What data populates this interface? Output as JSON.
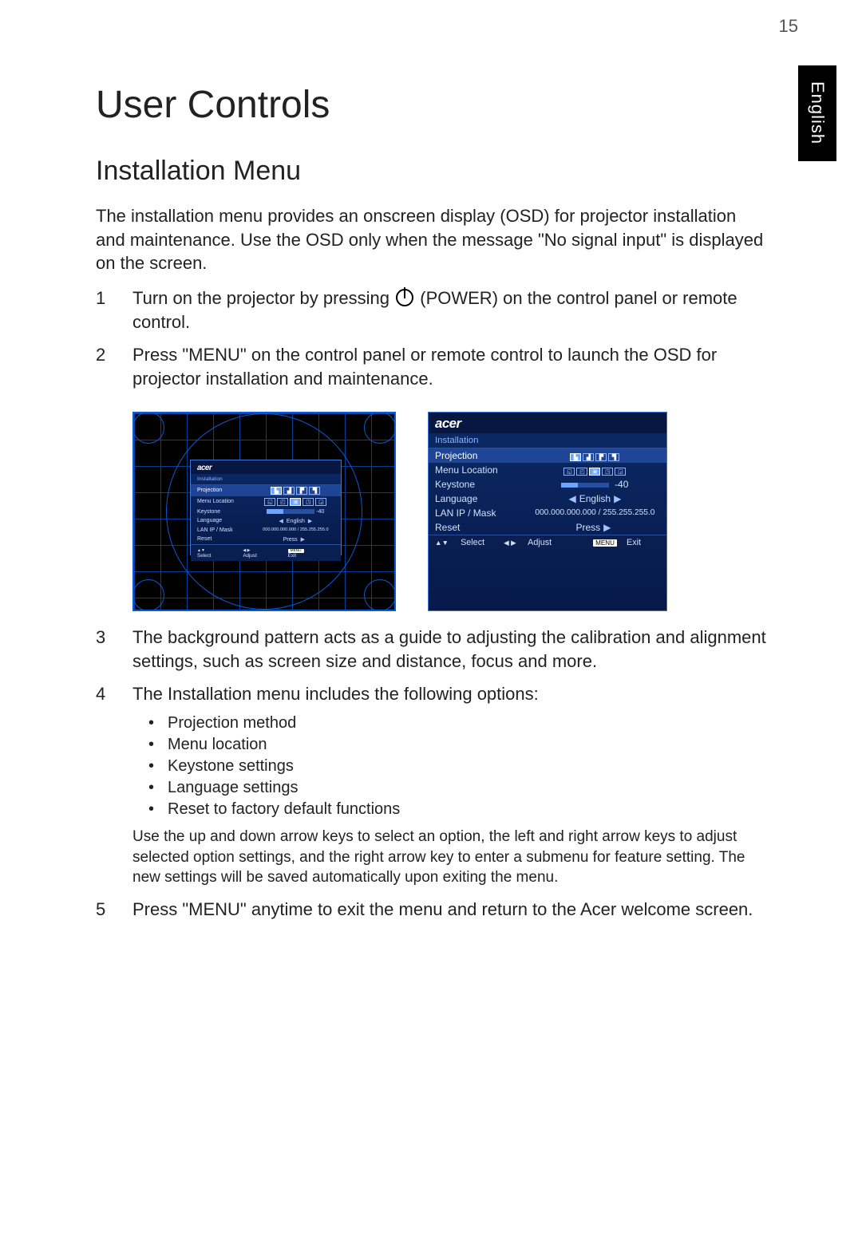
{
  "page_number": "15",
  "side_tab": "English",
  "h1": "User Controls",
  "h2": "Installation Menu",
  "intro": "The installation menu provides an onscreen display (OSD) for projector installation and maintenance. Use the OSD only when the message \"No signal input\" is displayed on the screen.",
  "step1_a": "Turn on the projector by pressing ",
  "step1_b": " (POWER) on the control panel or remote control.",
  "step2": "Press \"MENU\" on the control panel or remote control to launch the OSD for projector installation and maintenance.",
  "step3": "The background pattern acts as a guide to adjusting the calibration and alignment settings, such as screen size and distance, focus and more.",
  "step4": "The Installation menu includes the following options:",
  "bullets": {
    "b1": "Projection method",
    "b2": "Menu location",
    "b3": "Keystone settings",
    "b4": "Language settings",
    "b5": "Reset to factory default functions"
  },
  "step4_note": "Use the up and down arrow keys to select an option, the left and right arrow keys to adjust selected option settings, and the right arrow key to enter a submenu for feature setting. The new settings will be saved automatically upon exiting the menu.",
  "step5": "Press \"MENU\" anytime to exit the menu and return to the Acer welcome screen.",
  "osd": {
    "brand": "acer",
    "title": "Installation",
    "rows": {
      "projection": {
        "label": "Projection"
      },
      "menu_location": {
        "label": "Menu Location"
      },
      "keystone": {
        "label": "Keystone",
        "value": "-40"
      },
      "language": {
        "label": "Language",
        "value": "English"
      },
      "lan": {
        "label": "LAN IP / Mask",
        "value": "000.000.000.000  /  255.255.255.0"
      },
      "reset": {
        "label": "Reset",
        "value": "Press"
      }
    },
    "footer": {
      "select_icon": "▲▼",
      "select": "Select",
      "adjust_icon": "◀ ▶",
      "adjust": "Adjust",
      "menu": "MENU",
      "exit": "Exit"
    }
  },
  "colors": {
    "grid_bg": "#000000",
    "grid_line": "#0a59d6",
    "osd_bg_top": "#0b2a66",
    "osd_bg_bottom": "#07194a",
    "osd_border": "#3a75d6",
    "osd_text": "#cfe1ff",
    "osd_highlight": "#6aa6ff"
  }
}
